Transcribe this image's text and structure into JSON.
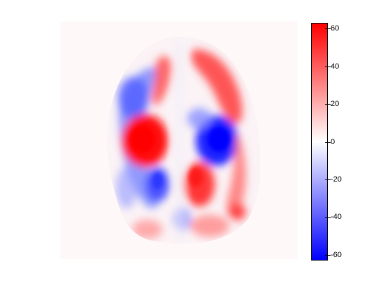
{
  "colorbar": {
    "tick_labels": [
      "60",
      "40",
      "20",
      "0",
      "-20",
      "-40",
      "-60"
    ],
    "tick_values": [
      60,
      40,
      20,
      0,
      -20,
      -40,
      -60
    ],
    "range": [
      -63,
      63
    ],
    "colors": {
      "max": "#ff0000",
      "mid": "#ffffff",
      "min": "#0000ff"
    }
  },
  "image": {
    "background_color": "#fff8f8",
    "description_icon": "brain-slice-heatmap"
  }
}
